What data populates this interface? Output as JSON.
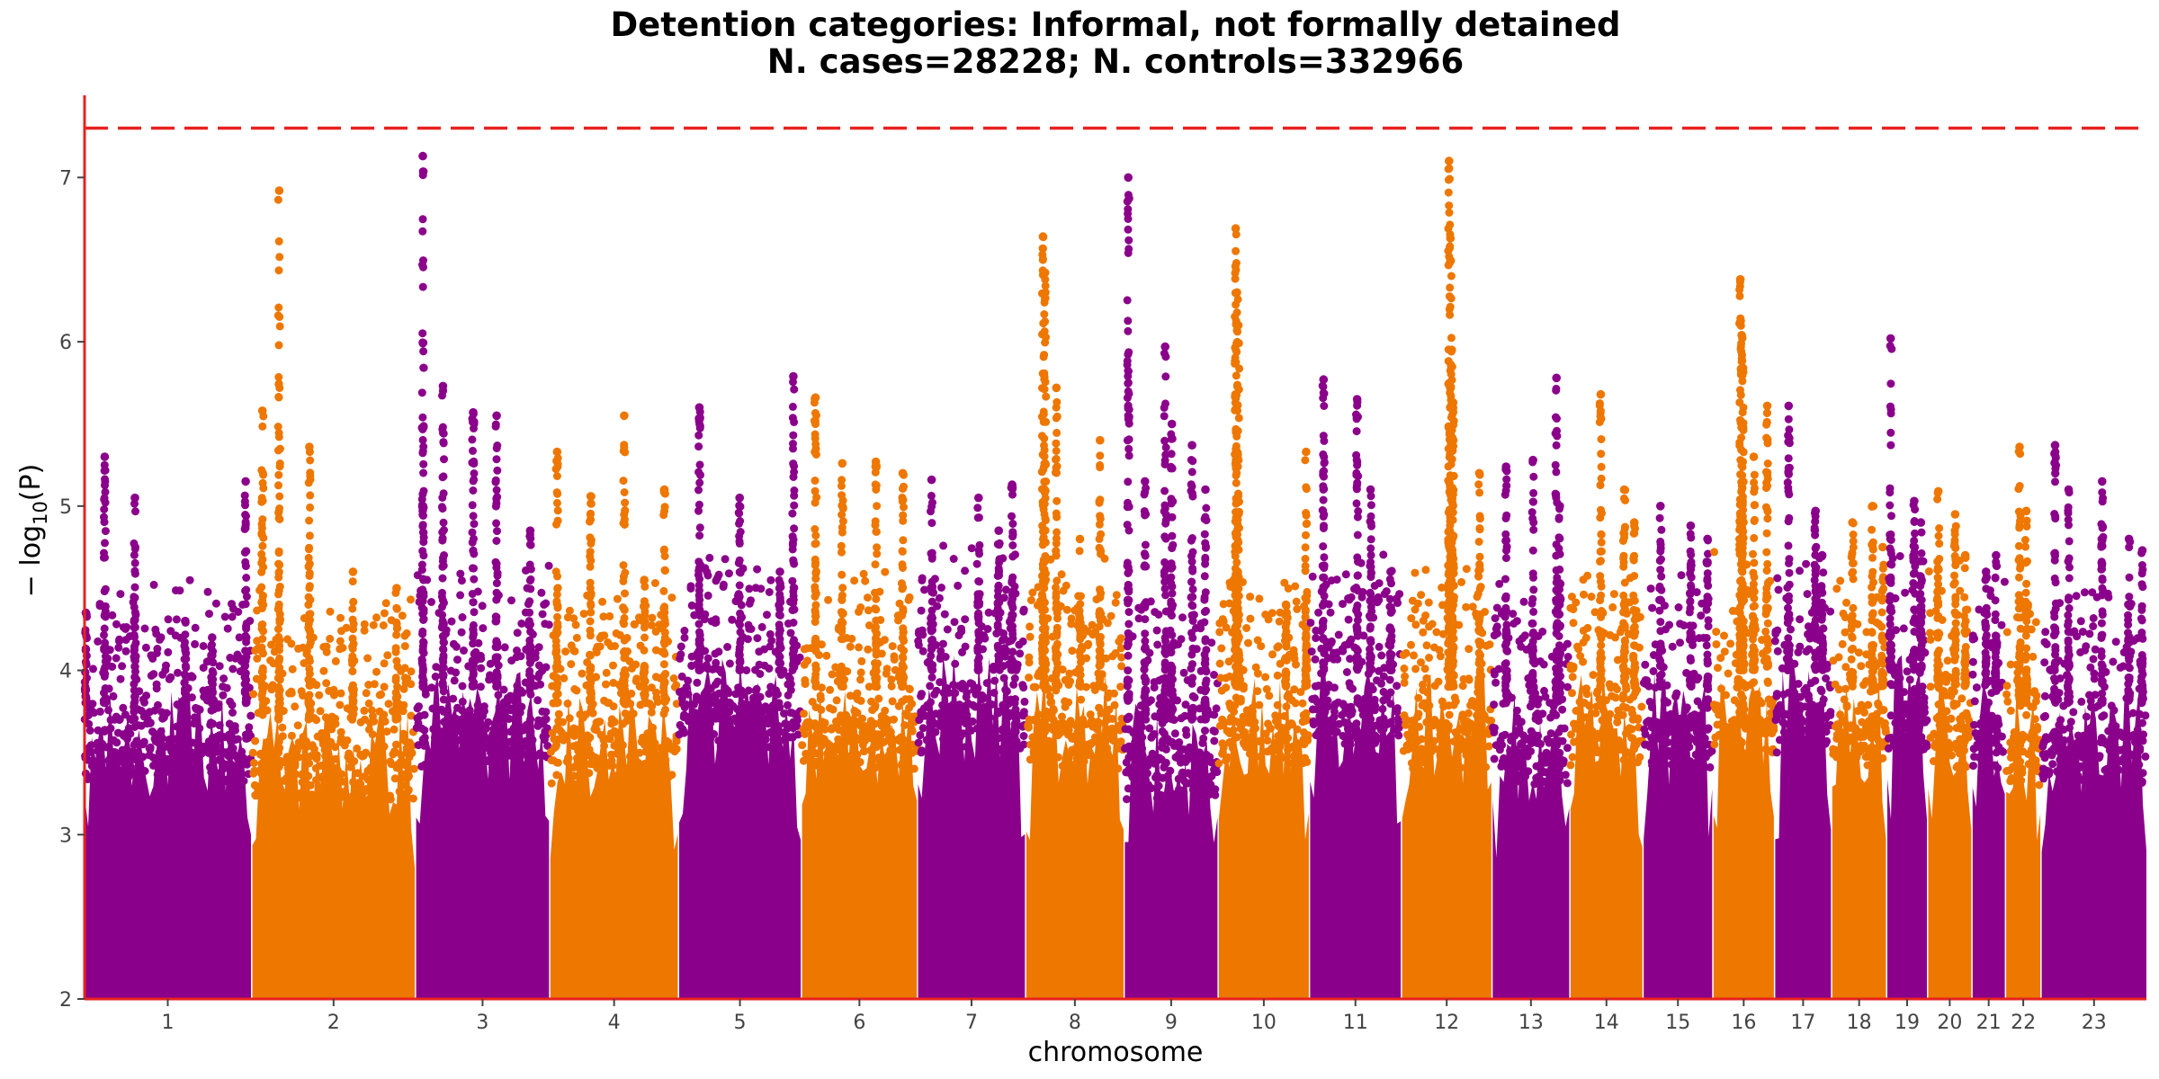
{
  "chart_data": {
    "type": "scatter",
    "title_line1": "Detention categories: Informal, not formally detained",
    "title_line2": "N. cases=28228; N. controls=332966",
    "xlabel": "chromosome",
    "ylabel_prefix": "− log",
    "ylabel_sub": "10",
    "ylabel_suffix": "(P)",
    "ylim": [
      2,
      7.5
    ],
    "y_ticks": [
      2,
      3,
      4,
      5,
      6,
      7
    ],
    "significance_line": 7.3,
    "grid": false,
    "colors": {
      "odd": "#8B008B",
      "even": "#EE7700",
      "line": "#E8221F",
      "axis": "#E8221F"
    },
    "chromosomes": [
      {
        "label": "1",
        "start": 0,
        "end": 248,
        "base": 3.8,
        "peaks": [
          [
            2,
            4.35
          ],
          [
            30,
            5.3
          ],
          [
            75,
            5.05
          ],
          [
            240,
            5.15
          ],
          [
            150,
            4.3
          ],
          [
            190,
            4.2
          ]
        ]
      },
      {
        "label": "2",
        "start": 250,
        "end": 492,
        "base": 3.7,
        "peaks": [
          [
            15,
            5.58
          ],
          [
            40,
            6.92
          ],
          [
            85,
            5.36
          ],
          [
            215,
            4.5
          ],
          [
            150,
            4.6
          ]
        ]
      },
      {
        "label": "3",
        "start": 494,
        "end": 692,
        "base": 3.9,
        "peaks": [
          [
            10,
            7.13
          ],
          [
            40,
            5.73
          ],
          [
            85,
            5.57
          ],
          [
            120,
            5.55
          ],
          [
            170,
            4.85
          ]
        ]
      },
      {
        "label": "4",
        "start": 694,
        "end": 884,
        "base": 3.8,
        "peaks": [
          [
            10,
            5.33
          ],
          [
            60,
            5.06
          ],
          [
            110,
            5.55
          ],
          [
            170,
            5.1
          ],
          [
            140,
            4.55
          ]
        ]
      },
      {
        "label": "5",
        "start": 886,
        "end": 1067,
        "base": 4.0,
        "peaks": [
          [
            30,
            5.6
          ],
          [
            90,
            5.05
          ],
          [
            150,
            4.6
          ],
          [
            170,
            5.79
          ]
        ]
      },
      {
        "label": "6",
        "start": 1069,
        "end": 1240,
        "base": 3.9,
        "peaks": [
          [
            20,
            5.66
          ],
          [
            60,
            5.26
          ],
          [
            110,
            5.27
          ],
          [
            150,
            5.2
          ]
        ]
      },
      {
        "label": "7",
        "start": 1242,
        "end": 1401,
        "base": 4.0,
        "peaks": [
          [
            20,
            5.16
          ],
          [
            90,
            5.05
          ],
          [
            140,
            5.13
          ],
          [
            120,
            4.85
          ]
        ]
      },
      {
        "label": "8",
        "start": 1403,
        "end": 1548,
        "base": 3.9,
        "peaks": [
          [
            25,
            6.64
          ],
          [
            28,
            6.42
          ],
          [
            45,
            5.72
          ],
          [
            110,
            5.4
          ],
          [
            80,
            4.8
          ]
        ]
      },
      {
        "label": "9",
        "start": 1550,
        "end": 1688,
        "base": 3.7,
        "peaks": [
          [
            5,
            7.0
          ],
          [
            30,
            5.15
          ],
          [
            60,
            5.97
          ],
          [
            70,
            5.5
          ],
          [
            100,
            5.37
          ],
          [
            120,
            5.1
          ]
        ]
      },
      {
        "label": "10",
        "start": 1690,
        "end": 1824,
        "base": 3.9,
        "peaks": [
          [
            25,
            6.69
          ],
          [
            27,
            6.3
          ],
          [
            29,
            6.1
          ],
          [
            100,
            4.4
          ],
          [
            130,
            5.33
          ]
        ]
      },
      {
        "label": "11",
        "start": 1826,
        "end": 1961,
        "base": 4.0,
        "peaks": [
          [
            20,
            5.77
          ],
          [
            70,
            5.65
          ],
          [
            90,
            5.1
          ],
          [
            120,
            4.6
          ]
        ]
      },
      {
        "label": "12",
        "start": 1963,
        "end": 2096,
        "base": 3.9,
        "peaks": [
          [
            70,
            7.1
          ],
          [
            72,
            6.63
          ],
          [
            74,
            5.95
          ],
          [
            76,
            5.63
          ],
          [
            115,
            5.2
          ]
        ]
      },
      {
        "label": "13",
        "start": 2098,
        "end": 2212,
        "base": 3.8,
        "peaks": [
          [
            20,
            5.24
          ],
          [
            60,
            5.28
          ],
          [
            95,
            5.78
          ],
          [
            100,
            5.0
          ]
        ]
      },
      {
        "label": "14",
        "start": 2214,
        "end": 2321,
        "base": 3.9,
        "peaks": [
          [
            45,
            5.68
          ],
          [
            80,
            5.1
          ],
          [
            95,
            4.9
          ]
        ]
      },
      {
        "label": "15",
        "start": 2323,
        "end": 2425,
        "base": 3.9,
        "peaks": [
          [
            25,
            5.0
          ],
          [
            70,
            4.88
          ],
          [
            95,
            4.8
          ]
        ]
      },
      {
        "label": "16",
        "start": 2427,
        "end": 2517,
        "base": 4.0,
        "peaks": [
          [
            40,
            6.38
          ],
          [
            42,
            6.04
          ],
          [
            44,
            5.84
          ],
          [
            80,
            5.61
          ],
          [
            60,
            5.3
          ]
        ]
      },
      {
        "label": "17",
        "start": 2519,
        "end": 2602,
        "base": 4.0,
        "peaks": [
          [
            20,
            5.61
          ],
          [
            60,
            4.97
          ],
          [
            70,
            4.7
          ]
        ]
      },
      {
        "label": "18",
        "start": 2604,
        "end": 2684,
        "base": 3.9,
        "peaks": [
          [
            30,
            4.9
          ],
          [
            60,
            5.0
          ],
          [
            75,
            4.75
          ]
        ]
      },
      {
        "label": "19",
        "start": 2686,
        "end": 2745,
        "base": 4.0,
        "peaks": [
          [
            5,
            6.02
          ],
          [
            40,
            5.03
          ],
          [
            50,
            4.9
          ]
        ]
      },
      {
        "label": "20",
        "start": 2747,
        "end": 2811,
        "base": 3.9,
        "peaks": [
          [
            15,
            5.09
          ],
          [
            40,
            4.95
          ],
          [
            55,
            4.7
          ]
        ]
      },
      {
        "label": "21",
        "start": 2813,
        "end": 2861,
        "base": 3.9,
        "peaks": [
          [
            20,
            4.6
          ],
          [
            35,
            4.7
          ]
        ]
      },
      {
        "label": "22",
        "start": 2863,
        "end": 2914,
        "base": 3.8,
        "peaks": [
          [
            20,
            5.36
          ],
          [
            30,
            4.97
          ]
        ]
      },
      {
        "label": "23",
        "start": 2916,
        "end": 3072,
        "base": 3.8,
        "peaks": [
          [
            20,
            5.37
          ],
          [
            40,
            5.1
          ],
          [
            90,
            5.15
          ],
          [
            130,
            4.8
          ],
          [
            150,
            4.73
          ]
        ]
      }
    ]
  }
}
